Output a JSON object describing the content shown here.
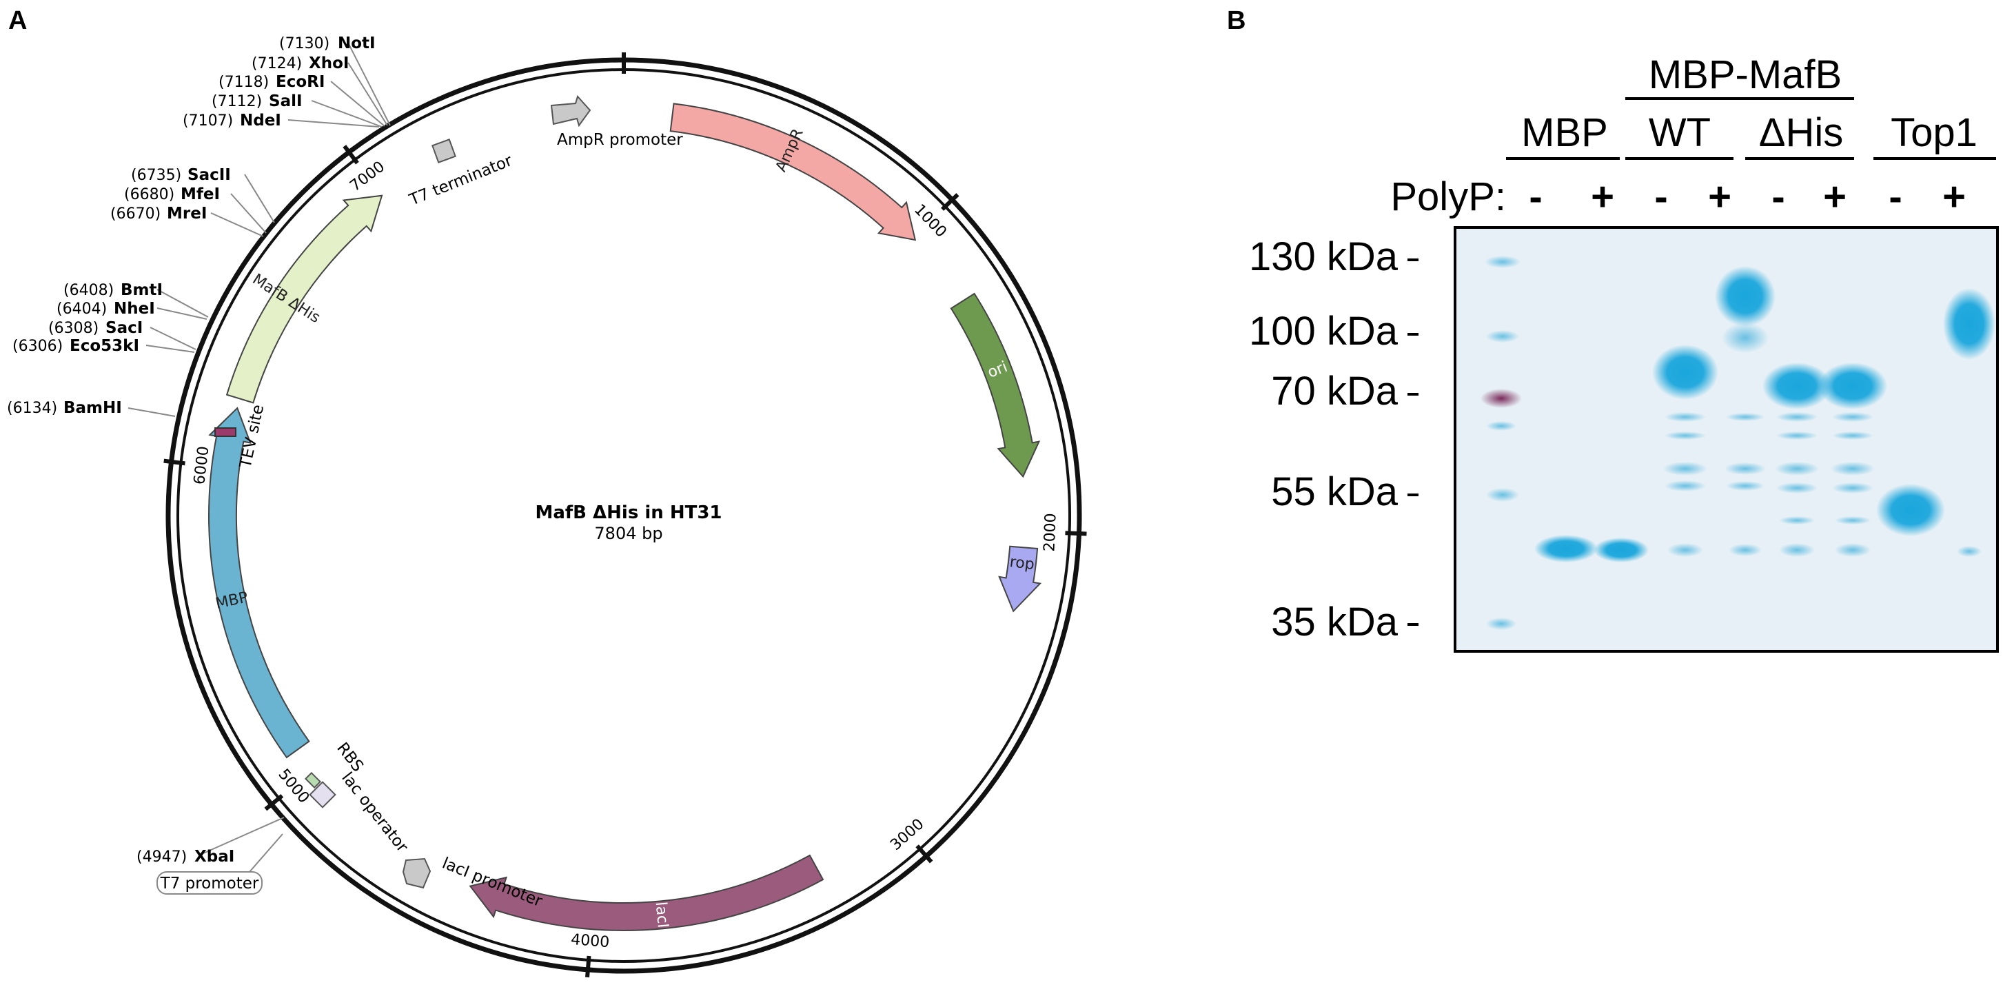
{
  "panel_a": {
    "label": "A",
    "plasmid": {
      "name": "MafB ΔHis in HT31",
      "size": "7804 bp",
      "total_bp": 7804,
      "ticks": [
        {
          "bp": 1000,
          "label": "1000"
        },
        {
          "bp": 2000,
          "label": "2000"
        },
        {
          "bp": 3000,
          "label": "3000"
        },
        {
          "bp": 4000,
          "label": "4000"
        },
        {
          "bp": 5000,
          "label": "5000"
        },
        {
          "bp": 6000,
          "label": "6000"
        },
        {
          "bp": 7000,
          "label": "7000"
        }
      ],
      "features": [
        {
          "name": "AmpR",
          "start": 150,
          "end": 1010,
          "color": "#f4a8a6"
        },
        {
          "name": "ori",
          "start": 1250,
          "end": 1830,
          "color": "#6e9a4f"
        },
        {
          "name": "rop",
          "start": 2050,
          "end": 2250,
          "color": "#a9a9f2"
        },
        {
          "name": "lacI",
          "start": 3280,
          "end": 4390,
          "color": "#9a5b7c"
        },
        {
          "name": "MBP",
          "start": 5080,
          "end": 6190,
          "color": "#6ab3d1"
        },
        {
          "name": "MafB ΔHis",
          "start": 6220,
          "end": 7000,
          "color": "#e3f0c8"
        }
      ],
      "small_features": [
        {
          "name": "AmpR promoter",
          "color": "#c9c9c9"
        },
        {
          "name": "T7 terminator",
          "color": "#c9c9c9"
        },
        {
          "name": "lacI promoter",
          "color": "#c9c9c9"
        },
        {
          "name": "lac operator",
          "color": "#e5e0f0"
        },
        {
          "name": "RBS",
          "color": "#b8dcb0"
        },
        {
          "name": "TEV site",
          "color": "#9a3b6b"
        },
        {
          "name": "T7 promoter",
          "color": "#ffffff"
        }
      ],
      "sites": [
        {
          "pos": "(7130)",
          "name": "NotI"
        },
        {
          "pos": "(7124)",
          "name": "XhoI"
        },
        {
          "pos": "(7118)",
          "name": "EcoRI"
        },
        {
          "pos": "(7112)",
          "name": "SalI"
        },
        {
          "pos": "(7107)",
          "name": "NdeI"
        },
        {
          "pos": "(6735)",
          "name": "SacII"
        },
        {
          "pos": "(6680)",
          "name": "MfeI"
        },
        {
          "pos": "(6670)",
          "name": "MreI"
        },
        {
          "pos": "(6408)",
          "name": "BmtI"
        },
        {
          "pos": "(6404)",
          "name": "NheI"
        },
        {
          "pos": "(6308)",
          "name": "SacI"
        },
        {
          "pos": "(6306)",
          "name": "Eco53kI"
        },
        {
          "pos": "(6134)",
          "name": "BamHI"
        },
        {
          "pos": "(4947)",
          "name": "XbaI"
        }
      ]
    }
  },
  "panel_b": {
    "label": "B",
    "group_header": "MBP-MafB",
    "groups": [
      "MBP",
      "WT",
      "ΔHis",
      "Top1"
    ],
    "row_label": "PolyP:",
    "polyp": [
      "-",
      "+",
      "-",
      "+",
      "-",
      "+",
      "-",
      "+"
    ],
    "markers": [
      "130 kDa",
      "100 kDa",
      "70 kDa",
      "55 kDa",
      "35 kDa"
    ],
    "band_color": "#1aa6dc",
    "ladder_highlight_color": "#7a2a5a"
  }
}
